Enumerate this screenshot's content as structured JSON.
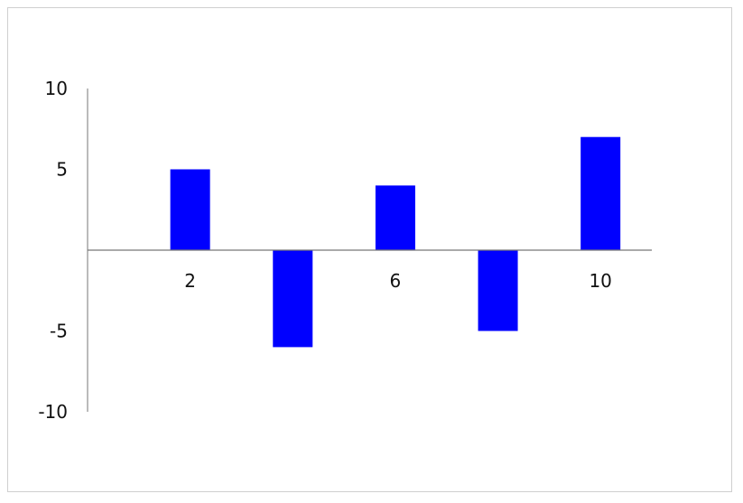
{
  "chart_data": {
    "type": "bar",
    "title": "",
    "xlabel": "",
    "ylabel": "",
    "x": [
      2,
      4,
      6,
      8,
      10
    ],
    "values": [
      5,
      -6,
      4,
      -5,
      7
    ],
    "xlim": [
      0,
      11
    ],
    "ylim": [
      -10,
      10
    ],
    "x_ticks": [
      "2",
      "6",
      "10"
    ],
    "x_tick_values": [
      2,
      6,
      10
    ],
    "y_ticks": [
      "10",
      "5",
      "-5",
      "-10"
    ],
    "y_tick_values": [
      10,
      5,
      -5,
      -10
    ],
    "grid": false,
    "legend": "none",
    "colors": {
      "bar": "#0000ff",
      "axis": "#777777"
    }
  }
}
